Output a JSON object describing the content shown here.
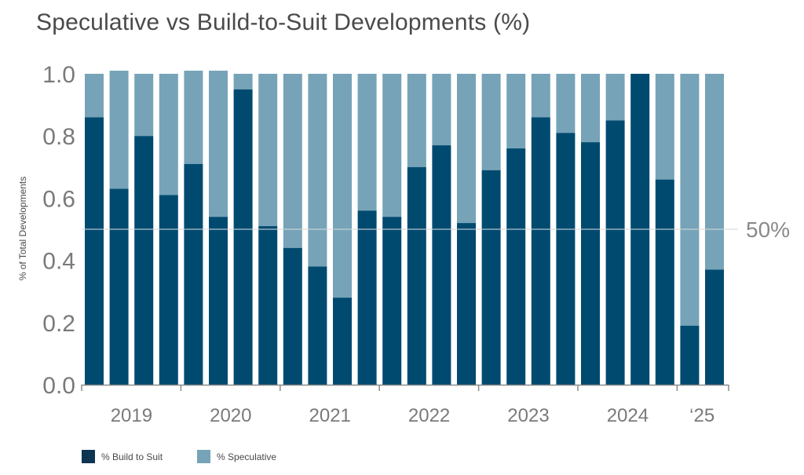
{
  "chart_data": {
    "type": "bar",
    "stacked": true,
    "title": "Speculative vs Build-to-Suit Developments (%)",
    "ylabel": "% of Total Developments",
    "xlabel": "",
    "ylim": [
      0,
      1.0
    ],
    "yticks": [
      "0.0",
      "0.2",
      "0.4",
      "0.6",
      "0.8",
      "1.0"
    ],
    "year_labels": [
      "2019",
      "2020",
      "2021",
      "2022",
      "2023",
      "2024",
      "‘25"
    ],
    "reference_line": {
      "value": 0.5,
      "label": "50%"
    },
    "series": [
      {
        "name": "% Build to Suit",
        "color": "#004a70",
        "values": [
          0.86,
          0.63,
          0.8,
          0.61,
          0.71,
          0.54,
          0.95,
          0.51,
          0.44,
          0.38,
          0.28,
          0.56,
          0.54,
          0.7,
          0.77,
          0.52,
          0.69,
          0.76,
          0.86,
          0.81,
          0.78,
          0.85,
          1.0,
          0.66,
          0.19,
          0.37
        ]
      },
      {
        "name": "% Speculative",
        "color": "#76a3b8",
        "values": [
          0.14,
          0.38,
          0.2,
          0.39,
          0.3,
          0.47,
          0.05,
          0.49,
          0.56,
          0.62,
          0.72,
          0.44,
          0.46,
          0.3,
          0.23,
          0.48,
          0.31,
          0.24,
          0.14,
          0.19,
          0.22,
          0.15,
          0.0,
          0.34,
          0.81,
          0.63
        ]
      }
    ],
    "grid": false,
    "legend_position": "bottom-left"
  },
  "legend": {
    "build_label": "% Build to Suit",
    "spec_label": "% Speculative",
    "build_color": "#0d3450",
    "spec_color": "#76a3b8"
  }
}
